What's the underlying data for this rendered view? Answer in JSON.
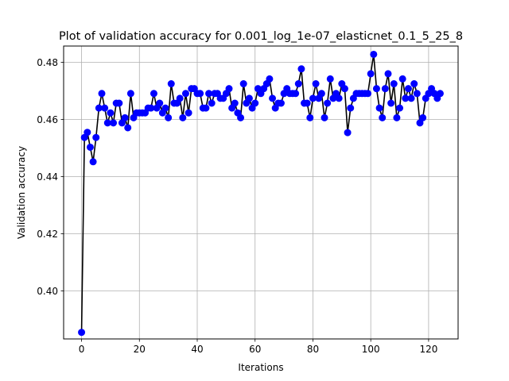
{
  "chart_data": {
    "type": "line",
    "title": "Plot of validation accuracy for 0.001_log_1e-07_elasticnet_0.1_5_25_8",
    "xlabel": "Iterations",
    "ylabel": "Validation accuracy",
    "xlim": [
      -6.2,
      130.2
    ],
    "ylim": [
      0.3832,
      0.4857
    ],
    "xticks": [
      0,
      20,
      40,
      60,
      80,
      100,
      120
    ],
    "yticks": [
      0.4,
      0.42,
      0.44,
      0.46,
      0.48
    ],
    "xtick_labels": [
      "0",
      "20",
      "40",
      "60",
      "80",
      "100",
      "120"
    ],
    "ytick_labels": [
      "0.40",
      "0.42",
      "0.44",
      "0.46",
      "0.48"
    ],
    "grid": true,
    "line_color": "#000000",
    "marker_color": "#0000ff",
    "series": [
      {
        "x": [
          0,
          1,
          2,
          3,
          4,
          5,
          6,
          7,
          8,
          9,
          10,
          11,
          12,
          13,
          14,
          15,
          16,
          17,
          18,
          19,
          20,
          21,
          22,
          23,
          24,
          25,
          26,
          27,
          28,
          29,
          30,
          31,
          32,
          33,
          34,
          35,
          36,
          37,
          38,
          39,
          40,
          41,
          42,
          43,
          44,
          45,
          46,
          47,
          48,
          49,
          50,
          51,
          52,
          53,
          54,
          55,
          56,
          57,
          58,
          59,
          60,
          61,
          62,
          63,
          64,
          65,
          66,
          67,
          68,
          69,
          70,
          71,
          72,
          73,
          74,
          75,
          76,
          77,
          78,
          79,
          80,
          81,
          82,
          83,
          84,
          85,
          86,
          87,
          88,
          89,
          90,
          91,
          92,
          93,
          94,
          95,
          96,
          97,
          98,
          99,
          100,
          101,
          102,
          103,
          104,
          105,
          106,
          107,
          108,
          109,
          110,
          111,
          112,
          113,
          114,
          115,
          116,
          117,
          118,
          119,
          120,
          121,
          122,
          123,
          124
        ],
        "values": [
          0.3855,
          0.4537,
          0.4555,
          0.4503,
          0.4452,
          0.4537,
          0.464,
          0.4691,
          0.464,
          0.4588,
          0.4623,
          0.4588,
          0.4657,
          0.4657,
          0.4588,
          0.4606,
          0.4571,
          0.4691,
          0.4606,
          0.4623,
          0.4623,
          0.4623,
          0.4623,
          0.464,
          0.464,
          0.4691,
          0.464,
          0.4657,
          0.4623,
          0.464,
          0.4606,
          0.4725,
          0.4657,
          0.4657,
          0.4674,
          0.4606,
          0.4691,
          0.4623,
          0.4708,
          0.4708,
          0.4691,
          0.4691,
          0.464,
          0.464,
          0.4691,
          0.4657,
          0.4691,
          0.4691,
          0.4674,
          0.4674,
          0.4691,
          0.4708,
          0.464,
          0.4657,
          0.4623,
          0.4606,
          0.4725,
          0.4657,
          0.4674,
          0.464,
          0.4657,
          0.4708,
          0.4691,
          0.4708,
          0.4725,
          0.4742,
          0.4674,
          0.464,
          0.4657,
          0.4657,
          0.4691,
          0.4708,
          0.4691,
          0.4691,
          0.4691,
          0.4725,
          0.4777,
          0.4657,
          0.4657,
          0.4606,
          0.4674,
          0.4725,
          0.4674,
          0.4691,
          0.4606,
          0.4657,
          0.4742,
          0.4674,
          0.4691,
          0.4674,
          0.4725,
          0.4708,
          0.4554,
          0.464,
          0.4674,
          0.4691,
          0.4691,
          0.4691,
          0.4691,
          0.4691,
          0.476,
          0.4828,
          0.4708,
          0.464,
          0.4606,
          0.4708,
          0.476,
          0.4657,
          0.4725,
          0.4606,
          0.464,
          0.4742,
          0.4674,
          0.4708,
          0.4674,
          0.4725,
          0.4691,
          0.4588,
          0.4606,
          0.4674,
          0.4691,
          0.4708,
          0.4691,
          0.4674,
          0.4691
        ]
      }
    ]
  }
}
